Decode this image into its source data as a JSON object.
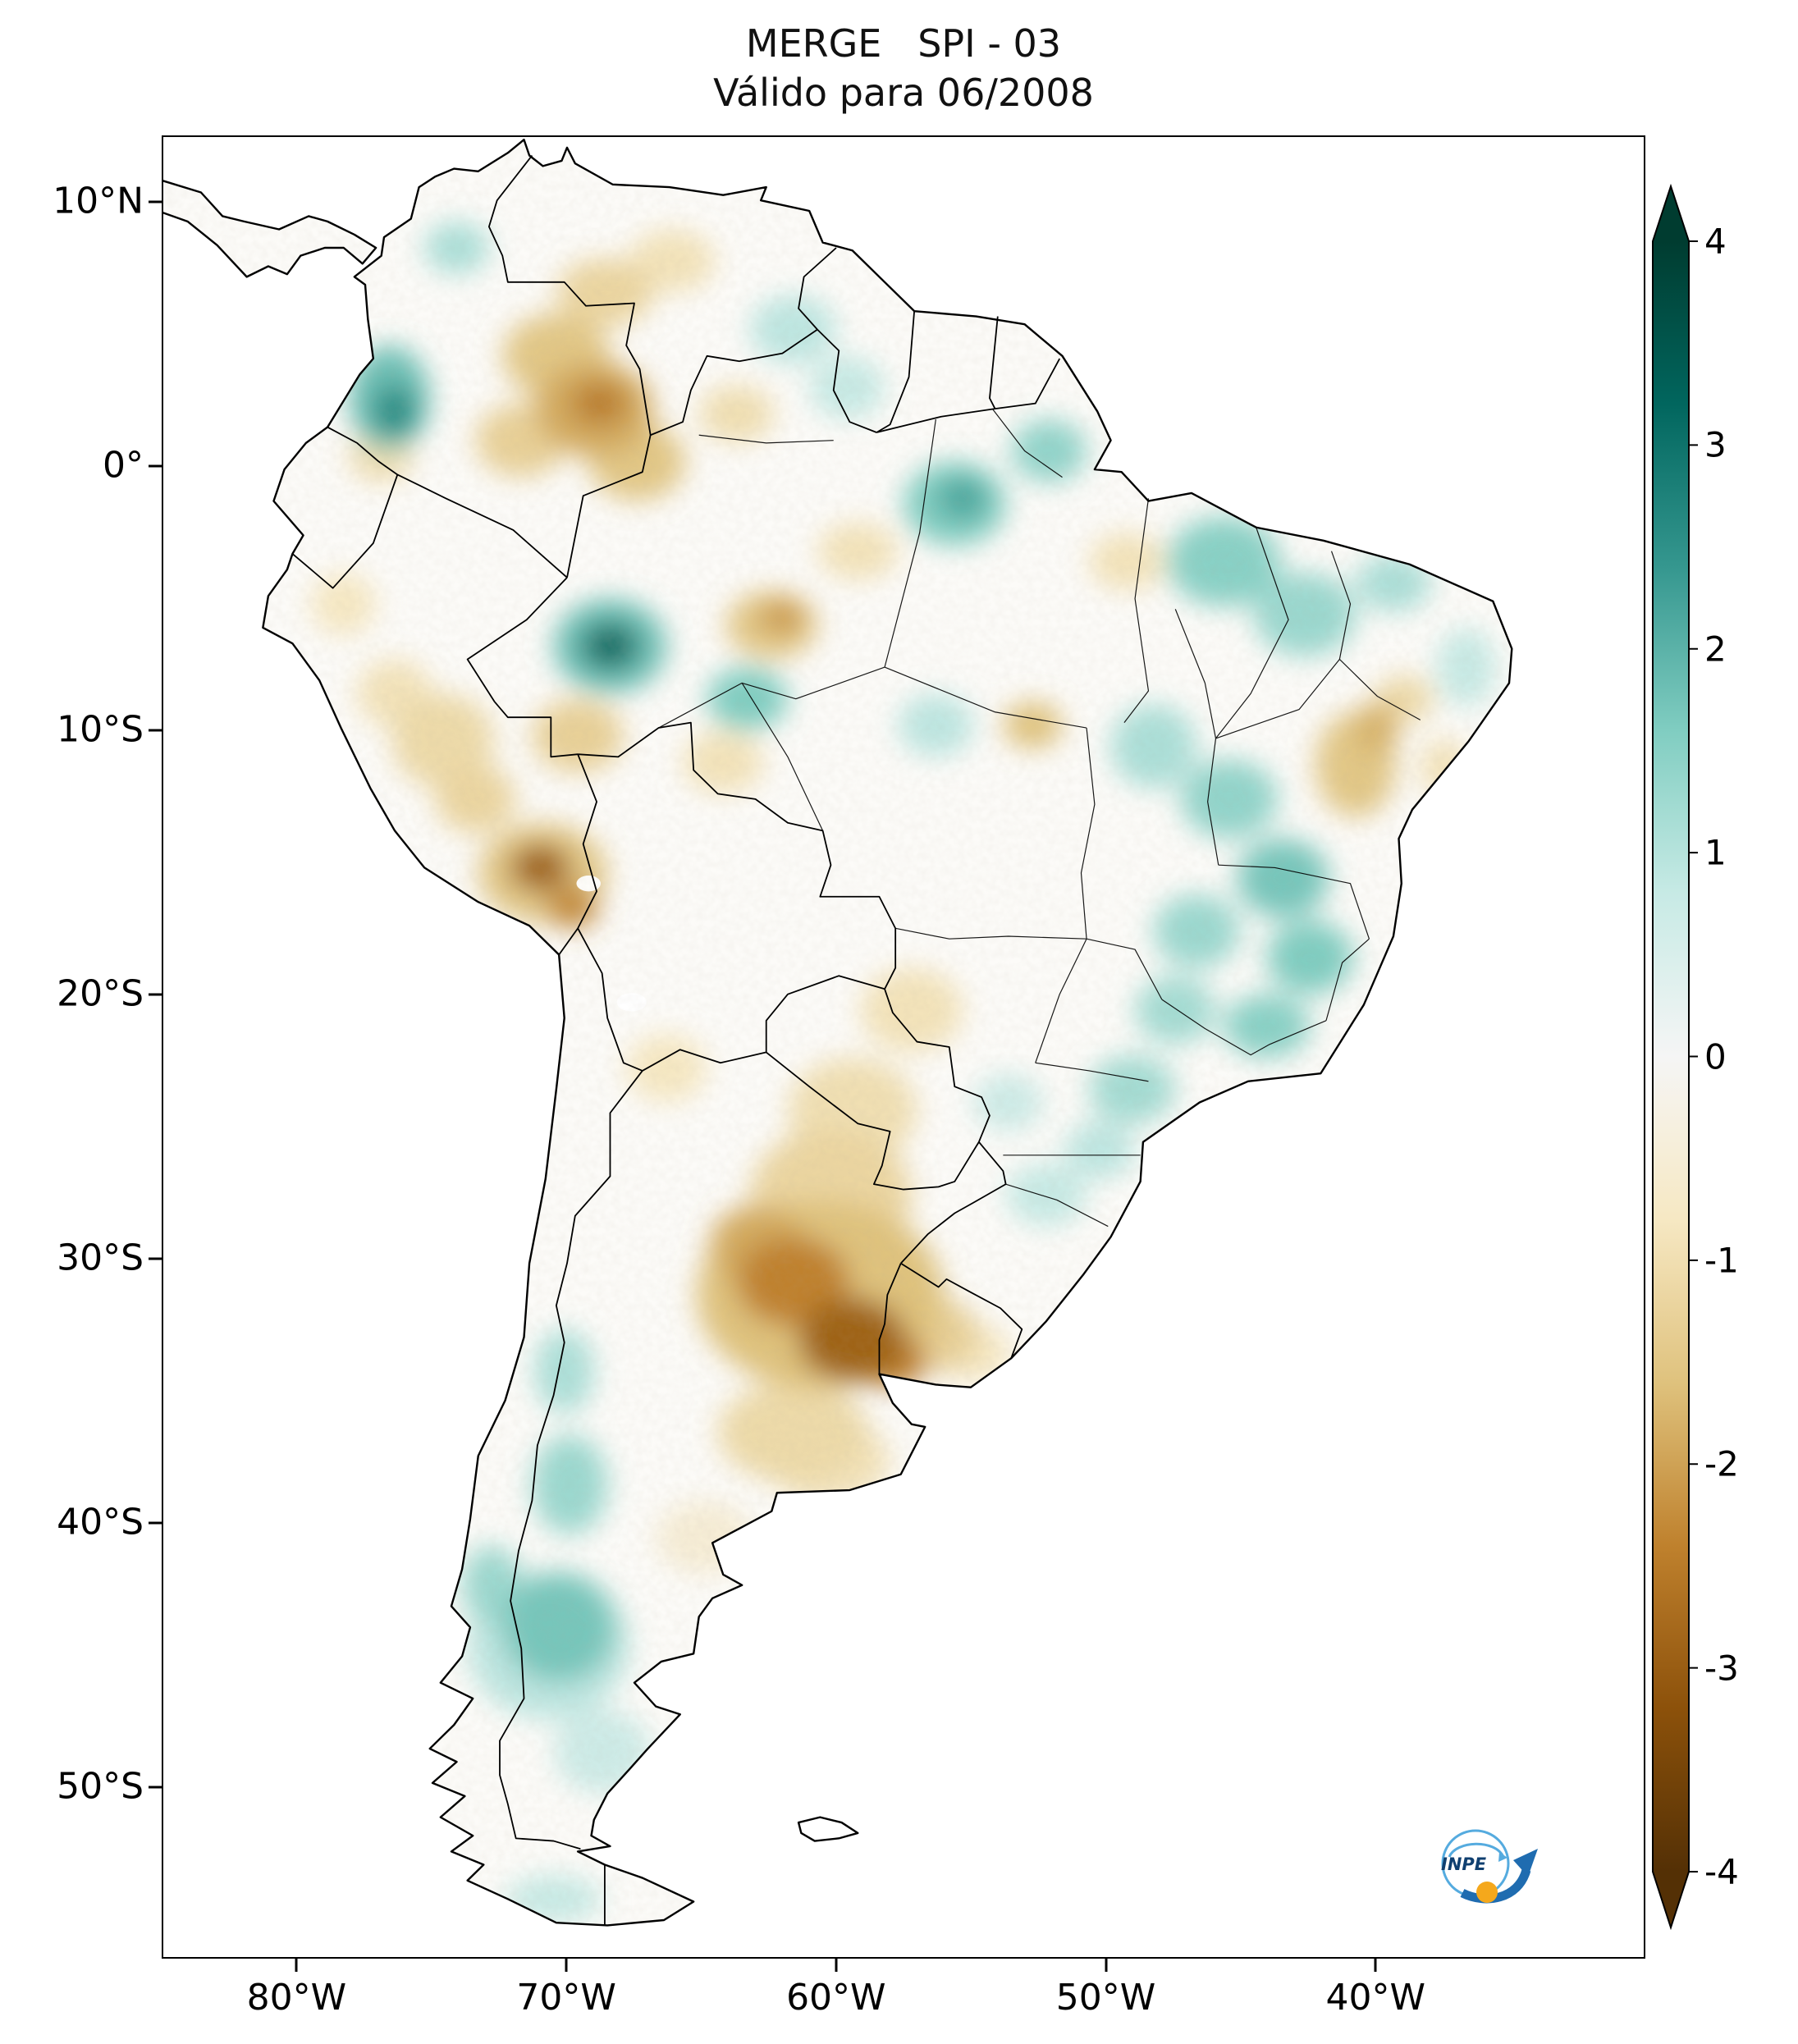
{
  "title": "MERGE   SPI - 03",
  "subtitle": "Válido para 06/2008",
  "axes": {
    "lat_ticks": [
      {
        "label": "10°N",
        "lat": 10
      },
      {
        "label": "0°",
        "lat": 0
      },
      {
        "label": "10°S",
        "lat": -10
      },
      {
        "label": "20°S",
        "lat": -20
      },
      {
        "label": "30°S",
        "lat": -30
      },
      {
        "label": "40°S",
        "lat": -40
      },
      {
        "label": "50°S",
        "lat": -50
      }
    ],
    "lon_ticks": [
      {
        "label": "80°W",
        "lon": -80
      },
      {
        "label": "70°W",
        "lon": -70
      },
      {
        "label": "60°W",
        "lon": -60
      },
      {
        "label": "50°W",
        "lon": -50
      },
      {
        "label": "40°W",
        "lon": -40
      }
    ]
  },
  "colorbar": {
    "ticks": [
      {
        "label": "4",
        "value": 4
      },
      {
        "label": "3",
        "value": 3
      },
      {
        "label": "2",
        "value": 2
      },
      {
        "label": "1",
        "value": 1
      },
      {
        "label": "0",
        "value": 0
      },
      {
        "label": "-1",
        "value": -1
      },
      {
        "label": "-2",
        "value": -2
      },
      {
        "label": "-3",
        "value": -3
      },
      {
        "label": "-4",
        "value": -4
      }
    ],
    "vmin": -4,
    "vmax": 4,
    "cmap_name": "BrBG",
    "cmap": [
      "#543005",
      "#8c510a",
      "#bf812d",
      "#dfc27d",
      "#f6e8c3",
      "#f5f5f5",
      "#c7eae5",
      "#80cdc1",
      "#35978f",
      "#01665e",
      "#003c30"
    ]
  },
  "logo": {
    "text": "INPE",
    "arrow_color": "#1f6cb0",
    "ring_color": "#55abdf",
    "dot_color": "#f5a81c",
    "text_color": "#0f3f70"
  },
  "map_data": {
    "type": "heatmap",
    "dataset": "MERGE",
    "index": "SPI-03",
    "valid_for": "06/2008",
    "extent": {
      "lon_min": -85,
      "lon_max": -30,
      "lat_min": -56.5,
      "lat_max": 12.5
    },
    "anomaly_format": [
      "lon",
      "lat",
      "radius_x_deg",
      "radius_y_deg",
      "spi_value"
    ],
    "anomalies": [
      [
        -76.6,
        2.6,
        1.5,
        2.0,
        1.8
      ],
      [
        -76.4,
        2.1,
        0.8,
        1.0,
        2.6
      ],
      [
        -74.1,
        8.3,
        1.2,
        1.0,
        1.1
      ],
      [
        -61.6,
        5.2,
        1.6,
        1.3,
        0.9
      ],
      [
        -59.6,
        3.0,
        1.4,
        1.2,
        0.8
      ],
      [
        -55.6,
        -1.4,
        1.9,
        1.6,
        1.6
      ],
      [
        -55.3,
        -1.2,
        0.9,
        0.8,
        2.2
      ],
      [
        -52.1,
        0.6,
        1.4,
        1.2,
        1.4
      ],
      [
        -68.4,
        -6.8,
        2.1,
        1.8,
        1.8
      ],
      [
        -68.4,
        -6.8,
        1.05,
        0.9,
        3.1
      ],
      [
        -63.3,
        -8.8,
        1.5,
        1.2,
        1.6
      ],
      [
        -56.3,
        -9.8,
        1.4,
        1.2,
        0.9
      ],
      [
        -48.2,
        -10.6,
        1.6,
        1.6,
        1.1
      ],
      [
        -45.6,
        -3.6,
        2.1,
        1.7,
        1.5
      ],
      [
        -42.6,
        -5.6,
        1.9,
        1.6,
        1.3
      ],
      [
        -39.3,
        -4.4,
        1.4,
        1.1,
        1.1
      ],
      [
        -36.6,
        -7.6,
        1.1,
        1.5,
        0.8
      ],
      [
        -45.4,
        -12.6,
        1.8,
        1.5,
        1.4
      ],
      [
        -43.4,
        -15.6,
        1.7,
        1.5,
        1.7
      ],
      [
        -46.6,
        -17.6,
        1.6,
        1.4,
        1.3
      ],
      [
        -42.4,
        -18.6,
        1.6,
        1.4,
        1.6
      ],
      [
        -47.4,
        -20.6,
        1.5,
        1.3,
        1.2
      ],
      [
        -44.0,
        -21.2,
        1.6,
        1.2,
        1.5
      ],
      [
        -49.0,
        -23.6,
        1.6,
        1.3,
        1.2
      ],
      [
        -52.2,
        -27.6,
        1.5,
        1.2,
        0.8
      ],
      [
        -50.2,
        -25.9,
        1.3,
        1.1,
        0.9
      ],
      [
        -53.6,
        -24.1,
        1.3,
        1.1,
        0.7
      ],
      [
        -70.1,
        -34.3,
        1.1,
        1.6,
        1.1
      ],
      [
        -69.9,
        -38.6,
        1.4,
        1.9,
        1.3
      ],
      [
        -70.3,
        -44.0,
        2.1,
        2.1,
        1.7
      ],
      [
        -70.7,
        -44.7,
        3.0,
        2.8,
        0.9
      ],
      [
        -72.8,
        -42.4,
        1.1,
        1.5,
        1.3
      ],
      [
        -68.7,
        -48.7,
        1.8,
        1.6,
        0.7
      ],
      [
        -70.5,
        -54.3,
        1.8,
        0.9,
        0.8
      ],
      [
        -70.4,
        4.2,
        2.0,
        1.6,
        -1.5
      ],
      [
        -69.0,
        2.2,
        2.2,
        1.8,
        -1.9
      ],
      [
        -68.8,
        2.4,
        1.0,
        0.8,
        -2.5
      ],
      [
        -71.7,
        1.0,
        1.7,
        1.4,
        -1.3
      ],
      [
        -67.4,
        0.2,
        1.8,
        1.5,
        -1.5
      ],
      [
        -68.6,
        6.6,
        1.8,
        1.3,
        -1.2
      ],
      [
        -66.1,
        7.8,
        1.6,
        1.2,
        -0.9
      ],
      [
        -63.7,
        2.0,
        1.4,
        1.1,
        -1.0
      ],
      [
        -76.9,
        0.4,
        1.2,
        1.0,
        -1.0
      ],
      [
        -62.4,
        -6.0,
        1.7,
        1.3,
        -1.5
      ],
      [
        -62.0,
        -5.7,
        0.8,
        0.65,
        -2.1
      ],
      [
        -59.2,
        -3.2,
        1.5,
        1.1,
        -0.9
      ],
      [
        -49.2,
        -3.6,
        1.4,
        1.1,
        -0.9
      ],
      [
        -52.7,
        -9.8,
        1.1,
        0.9,
        -1.6
      ],
      [
        -74.6,
        -10.4,
        1.9,
        1.8,
        -1.1
      ],
      [
        -76.4,
        -8.6,
        1.4,
        1.3,
        -0.9
      ],
      [
        -78.3,
        -5.2,
        1.2,
        1.2,
        -0.8
      ],
      [
        -73.4,
        -12.6,
        1.5,
        1.3,
        -1.2
      ],
      [
        -69.6,
        -10.2,
        1.7,
        1.4,
        -1.3
      ],
      [
        -64.2,
        -11.2,
        1.5,
        1.2,
        -0.9
      ],
      [
        -70.9,
        -15.4,
        2.4,
        1.9,
        -1.5
      ],
      [
        -71.0,
        -15.2,
        1.1,
        0.9,
        -2.9
      ],
      [
        -69.8,
        -16.7,
        0.95,
        0.8,
        -2.3
      ],
      [
        -40.7,
        -11.3,
        1.5,
        2.0,
        -1.5
      ],
      [
        -39.9,
        -9.9,
        0.8,
        1.0,
        -1.8
      ],
      [
        -38.9,
        -8.8,
        1.1,
        0.9,
        -1.1
      ],
      [
        -37.4,
        -11.4,
        0.9,
        1.1,
        -0.9
      ],
      [
        -66.3,
        -22.8,
        1.5,
        1.3,
        -0.8
      ],
      [
        -57.2,
        -20.6,
        1.9,
        1.6,
        -0.9
      ],
      [
        -59.4,
        -24.4,
        2.4,
        2.0,
        -1.0
      ],
      [
        -60.2,
        -27.6,
        3.0,
        2.5,
        -1.2
      ],
      [
        -60.6,
        -31.4,
        4.6,
        3.6,
        -1.6
      ],
      [
        -61.6,
        -30.9,
        2.1,
        1.7,
        -2.4
      ],
      [
        -62.9,
        -29.5,
        1.8,
        1.5,
        -1.9
      ],
      [
        -59.4,
        -33.1,
        2.0,
        1.6,
        -2.9
      ],
      [
        -57.9,
        -33.9,
        1.3,
        1.0,
        -2.4
      ],
      [
        -56.4,
        -32.9,
        1.7,
        1.4,
        -1.3
      ],
      [
        -54.9,
        -33.6,
        1.4,
        1.1,
        -0.8
      ],
      [
        -61.6,
        -36.6,
        2.8,
        1.9,
        -1.1
      ],
      [
        -60.3,
        -37.7,
        2.3,
        1.6,
        -0.9
      ],
      [
        -64.9,
        -40.6,
        1.8,
        1.4,
        -0.5
      ]
    ]
  }
}
